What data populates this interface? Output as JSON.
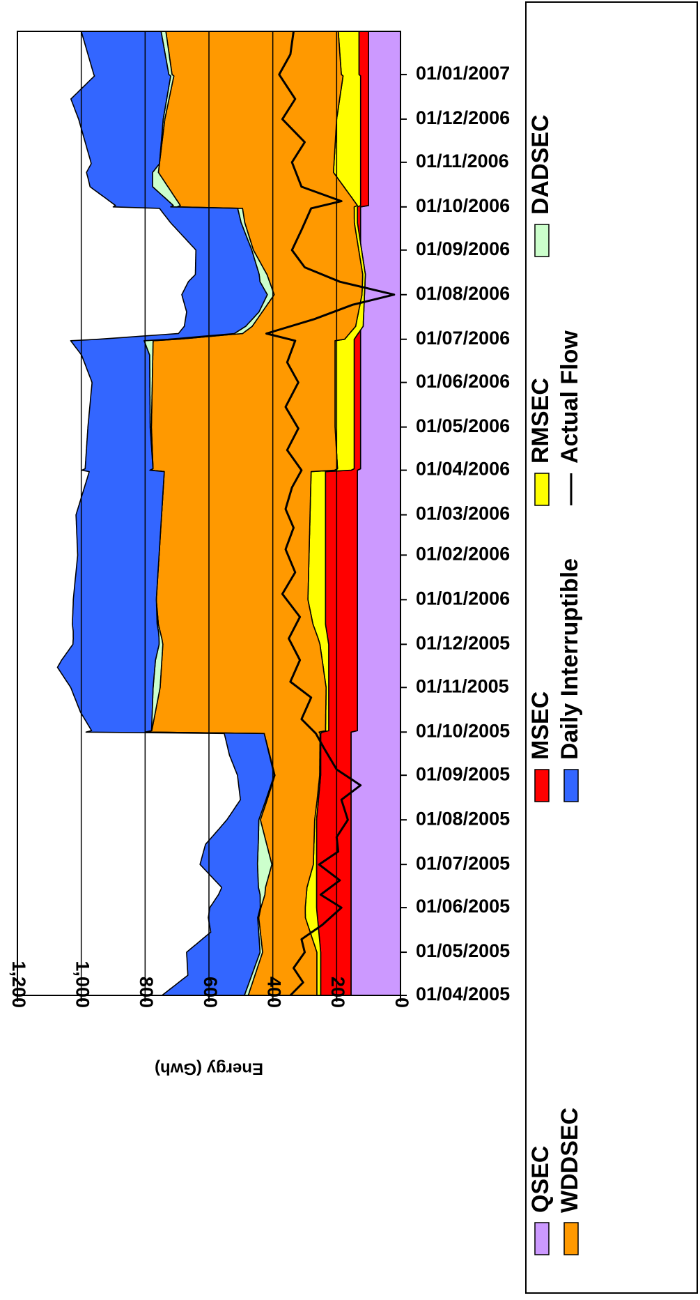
{
  "chart_data": {
    "type": "area",
    "orientation": "rotated-90-clockwise",
    "x_axis": {
      "type": "date",
      "range": [
        "2005-04-01",
        "2007-01-31"
      ],
      "tick_labels": [
        "01/04/2005",
        "01/05/2005",
        "01/06/2005",
        "01/07/2005",
        "01/08/2005",
        "01/09/2005",
        "01/10/2005",
        "01/11/2005",
        "01/12/2005",
        "01/01/2006",
        "01/02/2006",
        "01/03/2006",
        "01/04/2006",
        "01/05/2006",
        "01/06/2006",
        "01/07/2006",
        "01/08/2006",
        "01/09/2006",
        "01/10/2006",
        "01/11/2006",
        "01/12/2006",
        "01/01/2007"
      ],
      "tick_dates": [
        "2005-04-01",
        "2005-05-01",
        "2005-06-01",
        "2005-07-01",
        "2005-08-01",
        "2005-09-01",
        "2005-10-01",
        "2005-11-01",
        "2005-12-01",
        "2006-01-01",
        "2006-02-01",
        "2006-03-01",
        "2006-04-01",
        "2006-05-01",
        "2006-06-01",
        "2006-07-01",
        "2006-08-01",
        "2006-09-01",
        "2006-10-01",
        "2006-11-01",
        "2006-12-01",
        "2007-01-01"
      ]
    },
    "y_axis": {
      "label": "Energy (Gwh)",
      "range": [
        0,
        1200
      ],
      "ticks": [
        0,
        200,
        400,
        600,
        800,
        1000,
        1200
      ],
      "tick_labels": [
        "0",
        "200",
        "400",
        "600",
        "800",
        "1,000",
        "1,200"
      ],
      "gridlines": [
        200,
        400,
        600,
        800,
        1000
      ]
    },
    "grid": "horizontal",
    "legend_position": "right",
    "stacking": "stacked",
    "series": [
      {
        "name": "QSEC",
        "kind": "area",
        "color": "#cc99ff",
        "points": [
          [
            "2005-04-01",
            155
          ],
          [
            "2005-10-01",
            155
          ],
          [
            "2005-10-02",
            135
          ],
          [
            "2006-04-01",
            135
          ],
          [
            "2006-04-02",
            125
          ],
          [
            "2006-10-01",
            125
          ],
          [
            "2006-10-02",
            100
          ],
          [
            "2007-01-31",
            100
          ]
        ]
      },
      {
        "name": "MSEC",
        "kind": "area",
        "color": "#ff0000",
        "points": [
          [
            "2005-04-01",
            95
          ],
          [
            "2005-05-01",
            95
          ],
          [
            "2005-06-01",
            108
          ],
          [
            "2005-08-01",
            108
          ],
          [
            "2005-09-01",
            95
          ],
          [
            "2005-09-30",
            95
          ],
          [
            "2005-10-01",
            90
          ],
          [
            "2005-12-01",
            90
          ],
          [
            "2005-12-15",
            100
          ],
          [
            "2006-03-31",
            100
          ],
          [
            "2006-04-01",
            20
          ],
          [
            "2006-06-30",
            20
          ],
          [
            "2006-07-01",
            20
          ],
          [
            "2006-07-10",
            -8
          ],
          [
            "2006-08-15",
            -15
          ],
          [
            "2006-09-20",
            10
          ],
          [
            "2006-10-01",
            10
          ],
          [
            "2006-10-02",
            25
          ],
          [
            "2006-12-31",
            25
          ],
          [
            "2007-01-01",
            30
          ],
          [
            "2007-01-31",
            30
          ]
        ]
      },
      {
        "name": "RMSEC",
        "kind": "area",
        "color": "#ffff00",
        "points": [
          [
            "2005-04-01",
            12
          ],
          [
            "2005-05-01",
            12
          ],
          [
            "2005-05-25",
            38
          ],
          [
            "2005-06-15",
            30
          ],
          [
            "2005-07-01",
            10
          ],
          [
            "2005-08-15",
            4
          ],
          [
            "2005-09-30",
            2
          ],
          [
            "2005-10-01",
            10
          ],
          [
            "2005-11-01",
            8
          ],
          [
            "2005-12-05",
            30
          ],
          [
            "2006-01-01",
            55
          ],
          [
            "2006-03-31",
            45
          ],
          [
            "2006-04-01",
            52
          ],
          [
            "2006-05-01",
            60
          ],
          [
            "2006-06-30",
            60
          ],
          [
            "2006-07-01",
            30
          ],
          [
            "2006-08-01",
            8
          ],
          [
            "2006-09-30",
            10
          ],
          [
            "2006-10-02",
            10
          ],
          [
            "2006-10-25",
            85
          ],
          [
            "2006-12-01",
            75
          ],
          [
            "2006-12-31",
            55
          ],
          [
            "2007-01-31",
            65
          ]
        ]
      },
      {
        "name": "WDDSEC",
        "kind": "area",
        "color": "#ff9900",
        "points": [
          [
            "2005-04-01",
            215
          ],
          [
            "2005-05-01",
            170
          ],
          [
            "2005-06-10",
            130
          ],
          [
            "2005-07-01",
            130
          ],
          [
            "2005-08-01",
            170
          ],
          [
            "2005-09-01",
            140
          ],
          [
            "2005-09-30",
            175
          ],
          [
            "2005-10-01",
            545
          ],
          [
            "2005-11-01",
            520
          ],
          [
            "2005-12-01",
            492
          ],
          [
            "2006-01-01",
            475
          ],
          [
            "2006-03-31",
            460
          ],
          [
            "2006-04-01",
            578
          ],
          [
            "2006-06-30",
            570
          ],
          [
            "2006-07-05",
            335
          ],
          [
            "2006-08-01",
            275
          ],
          [
            "2006-09-01",
            330
          ],
          [
            "2006-09-30",
            350
          ],
          [
            "2006-10-01",
            555
          ],
          [
            "2006-12-31",
            530
          ],
          [
            "2007-01-31",
            540
          ]
        ]
      },
      {
        "name": "DADSEC",
        "kind": "area",
        "color": "#ccffcc",
        "points": [
          [
            "2005-04-01",
            12
          ],
          [
            "2005-05-01",
            8
          ],
          [
            "2005-06-01",
            2
          ],
          [
            "2005-07-01",
            45
          ],
          [
            "2005-07-20",
            20
          ],
          [
            "2005-08-01",
            5
          ],
          [
            "2005-09-30",
            0
          ],
          [
            "2005-10-01",
            0
          ],
          [
            "2005-11-01",
            22
          ],
          [
            "2005-11-20",
            20
          ],
          [
            "2005-12-10",
            5
          ],
          [
            "2005-12-31",
            0
          ],
          [
            "2006-03-31",
            0
          ],
          [
            "2006-06-20",
            10
          ],
          [
            "2006-07-01",
            30
          ],
          [
            "2006-07-20",
            10
          ],
          [
            "2006-08-10",
            30
          ],
          [
            "2006-09-01",
            5
          ],
          [
            "2006-09-30",
            15
          ],
          [
            "2006-10-01",
            20
          ],
          [
            "2006-10-15",
            48
          ],
          [
            "2006-10-31",
            0
          ],
          [
            "2007-01-31",
            15
          ]
        ]
      },
      {
        "name": "Daily Interruptible",
        "kind": "area",
        "color": "#3366ff",
        "points": [
          [
            "2005-04-01",
            258
          ],
          [
            "2005-04-15",
            200
          ],
          [
            "2005-05-01",
            230
          ],
          [
            "2005-05-15",
            150
          ],
          [
            "2005-06-01",
            158
          ],
          [
            "2005-06-15",
            115
          ],
          [
            "2005-07-01",
            180
          ],
          [
            "2005-07-15",
            165
          ],
          [
            "2005-08-01",
            100
          ],
          [
            "2005-08-15",
            80
          ],
          [
            "2005-09-01",
            115
          ],
          [
            "2005-09-15",
            125
          ],
          [
            "2005-09-30",
            125
          ],
          [
            "2005-10-01",
            185
          ],
          [
            "2005-10-15",
            225
          ],
          [
            "2005-11-01",
            258
          ],
          [
            "2005-11-15",
            305
          ],
          [
            "2005-12-01",
            270
          ],
          [
            "2006-01-01",
            260
          ],
          [
            "2006-02-01",
            255
          ],
          [
            "2006-03-01",
            268
          ],
          [
            "2006-03-31",
            235
          ],
          [
            "2006-04-01",
            213
          ],
          [
            "2006-05-01",
            195
          ],
          [
            "2006-06-01",
            181
          ],
          [
            "2006-06-30",
            230
          ],
          [
            "2006-07-05",
            175
          ],
          [
            "2006-08-01",
            268
          ],
          [
            "2006-08-15",
            200
          ],
          [
            "2006-09-01",
            175
          ],
          [
            "2006-09-30",
            245
          ],
          [
            "2006-10-01",
            180
          ],
          [
            "2006-11-01",
            215
          ],
          [
            "2006-12-01",
            265
          ],
          [
            "2006-12-15",
            300
          ],
          [
            "2007-01-01",
            235
          ],
          [
            "2007-01-31",
            250
          ]
        ]
      },
      {
        "name": "Actual Flow",
        "kind": "line",
        "color": "#000000",
        "points": [
          [
            "2005-04-01",
            345
          ],
          [
            "2005-04-10",
            305
          ],
          [
            "2005-04-20",
            335
          ],
          [
            "2005-05-01",
            300
          ],
          [
            "2005-05-10",
            310
          ],
          [
            "2005-05-20",
            245
          ],
          [
            "2005-06-01",
            185
          ],
          [
            "2005-06-10",
            250
          ],
          [
            "2005-06-20",
            190
          ],
          [
            "2005-07-01",
            255
          ],
          [
            "2005-07-10",
            195
          ],
          [
            "2005-07-20",
            200
          ],
          [
            "2005-08-01",
            165
          ],
          [
            "2005-08-15",
            185
          ],
          [
            "2005-08-25",
            125
          ],
          [
            "2005-09-05",
            200
          ],
          [
            "2005-09-20",
            240
          ],
          [
            "2005-09-30",
            265
          ],
          [
            "2005-10-10",
            310
          ],
          [
            "2005-10-25",
            280
          ],
          [
            "2005-11-05",
            345
          ],
          [
            "2005-11-20",
            315
          ],
          [
            "2005-12-05",
            350
          ],
          [
            "2005-12-20",
            315
          ],
          [
            "2006-01-05",
            370
          ],
          [
            "2006-01-20",
            330
          ],
          [
            "2006-02-05",
            360
          ],
          [
            "2006-02-20",
            335
          ],
          [
            "2006-03-05",
            360
          ],
          [
            "2006-03-20",
            340
          ],
          [
            "2006-04-01",
            310
          ],
          [
            "2006-04-15",
            355
          ],
          [
            "2006-04-30",
            320
          ],
          [
            "2006-05-15",
            360
          ],
          [
            "2006-06-01",
            320
          ],
          [
            "2006-06-15",
            355
          ],
          [
            "2006-06-30",
            330
          ],
          [
            "2006-07-05",
            420
          ],
          [
            "2006-07-15",
            270
          ],
          [
            "2006-07-25",
            150
          ],
          [
            "2006-08-01",
            20
          ],
          [
            "2006-08-10",
            190
          ],
          [
            "2006-08-20",
            300
          ],
          [
            "2006-09-01",
            340
          ],
          [
            "2006-09-15",
            310
          ],
          [
            "2006-09-30",
            280
          ],
          [
            "2006-10-05",
            185
          ],
          [
            "2006-10-15",
            310
          ],
          [
            "2006-11-01",
            340
          ],
          [
            "2006-11-15",
            300
          ],
          [
            "2006-12-01",
            370
          ],
          [
            "2006-12-15",
            330
          ],
          [
            "2007-01-01",
            380
          ],
          [
            "2007-01-15",
            345
          ],
          [
            "2007-01-31",
            335
          ]
        ]
      }
    ]
  }
}
